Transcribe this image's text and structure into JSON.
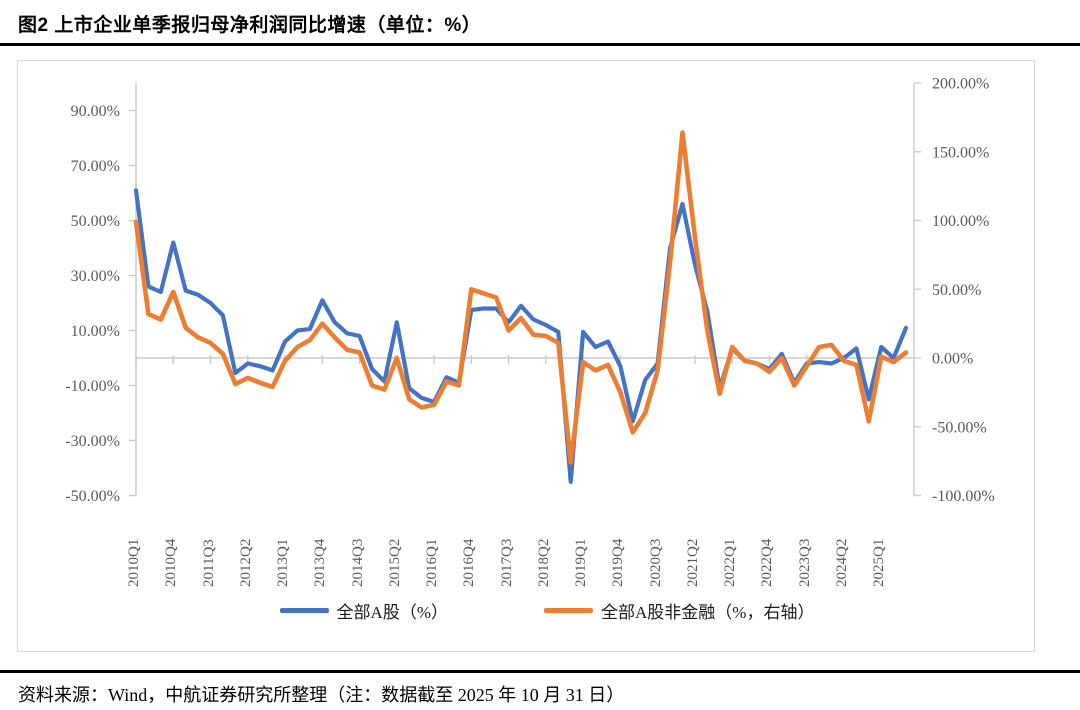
{
  "header": {
    "title": "图2  上市企业单季报归母净利润同比增速（单位：%）"
  },
  "footer": {
    "source_note": "资料来源：Wind，中航证券研究所整理（注：数据截至 2025 年 10 月 31 日）"
  },
  "legend": {
    "series1_label": "全部A股（%）",
    "series2_label": "全部A股非金融（%，右轴）"
  },
  "colors": {
    "series1": "#4472C4",
    "series2": "#ED7D31",
    "axis_text": "#595959",
    "axis_line": "#c9c9c9",
    "frame": "#d9d9d9"
  },
  "chart_data": {
    "type": "line",
    "title": "上市企业单季报归母净利润同比增速",
    "unit": "%",
    "grid": "zero-line-only",
    "legend_position": "bottom",
    "categories": [
      "2010Q1",
      "2010Q2",
      "2010Q3",
      "2010Q4",
      "2011Q1",
      "2011Q2",
      "2011Q3",
      "2011Q4",
      "2012Q1",
      "2012Q2",
      "2012Q3",
      "2012Q4",
      "2013Q1",
      "2013Q2",
      "2013Q3",
      "2013Q4",
      "2014Q1",
      "2014Q2",
      "2014Q3",
      "2014Q4",
      "2015Q1",
      "2015Q2",
      "2015Q3",
      "2015Q4",
      "2016Q1",
      "2016Q2",
      "2016Q3",
      "2016Q4",
      "2017Q1",
      "2017Q2",
      "2017Q3",
      "2017Q4",
      "2018Q1",
      "2018Q2",
      "2018Q3",
      "2018Q4",
      "2019Q1",
      "2019Q2",
      "2019Q3",
      "2019Q4",
      "2020Q1",
      "2020Q2",
      "2020Q3",
      "2020Q4",
      "2021Q1",
      "2021Q2",
      "2021Q3",
      "2021Q4",
      "2022Q1",
      "2022Q2",
      "2022Q3",
      "2022Q4",
      "2023Q1",
      "2023Q2",
      "2023Q3",
      "2023Q4",
      "2024Q1",
      "2024Q2",
      "2024Q3",
      "2024Q4",
      "2025Q1",
      "2025Q2",
      "2025Q3"
    ],
    "x_tick_labels": [
      "2010Q1",
      "2010Q4",
      "2011Q3",
      "2012Q2",
      "2013Q1",
      "2013Q4",
      "2014Q3",
      "2015Q2",
      "2016Q1",
      "2016Q4",
      "2017Q3",
      "2018Q2",
      "2019Q1",
      "2019Q4",
      "2020Q3",
      "2021Q2",
      "2022Q1",
      "2022Q4",
      "2023Q3",
      "2024Q2",
      "2025Q1"
    ],
    "x_tick_every": 3,
    "left_axis": {
      "min": -50,
      "max": 100,
      "tick_values": [
        90,
        70,
        50,
        30,
        10,
        -10,
        -30,
        -50
      ],
      "tick_labels": [
        "90.00%",
        "70.00%",
        "50.00%",
        "30.00%",
        "10.00%",
        "-10.00%",
        "-30.00%",
        "-50.00%"
      ]
    },
    "right_axis": {
      "min": -100,
      "max": 200,
      "tick_values": [
        200,
        150,
        100,
        50,
        0,
        -50,
        -100
      ],
      "tick_labels": [
        "200.00%",
        "150.00%",
        "100.00%",
        "50.00%",
        "0.00%",
        "-50.00%",
        "-100.00%"
      ]
    },
    "series": [
      {
        "name": "全部A股（%）",
        "axis": "left",
        "color": "#4472C4",
        "values": [
          61,
          26,
          24,
          42,
          24.5,
          23,
          20,
          15.5,
          -5.5,
          -2,
          -3,
          -4.5,
          6,
          10,
          10.5,
          21,
          13,
          9,
          8,
          -4,
          -8.5,
          13,
          -11,
          -14.5,
          -16,
          -7,
          -9,
          17.5,
          18,
          18,
          13,
          19,
          14,
          12,
          9.5,
          -45,
          9.5,
          4,
          6,
          -3,
          -23,
          -8,
          -2,
          40,
          56,
          34,
          17,
          -11,
          3.5,
          -1,
          -2,
          -4,
          1.5,
          -9,
          -2,
          -1.5,
          -2,
          0,
          3.5,
          -15,
          4,
          0,
          11
        ]
      },
      {
        "name": "全部A股非金融（%，右轴）",
        "axis": "right",
        "color": "#ED7D31",
        "values": [
          99,
          32,
          28,
          48,
          22,
          15,
          11,
          3,
          -19,
          -14.5,
          -18,
          -21,
          -2,
          8,
          13,
          25,
          15,
          6,
          4,
          -20,
          -23,
          0,
          -30,
          -36,
          -34,
          -17,
          -20,
          50,
          47,
          44,
          20,
          29,
          17,
          16,
          11,
          -76,
          -3,
          -9,
          -5,
          -25,
          -54,
          -40,
          -9,
          70,
          164,
          88,
          20,
          -26,
          8,
          -2,
          -4,
          -10,
          0,
          -20,
          -6,
          8,
          9.5,
          -2,
          -5,
          -46,
          1,
          -3,
          4
        ]
      }
    ]
  }
}
